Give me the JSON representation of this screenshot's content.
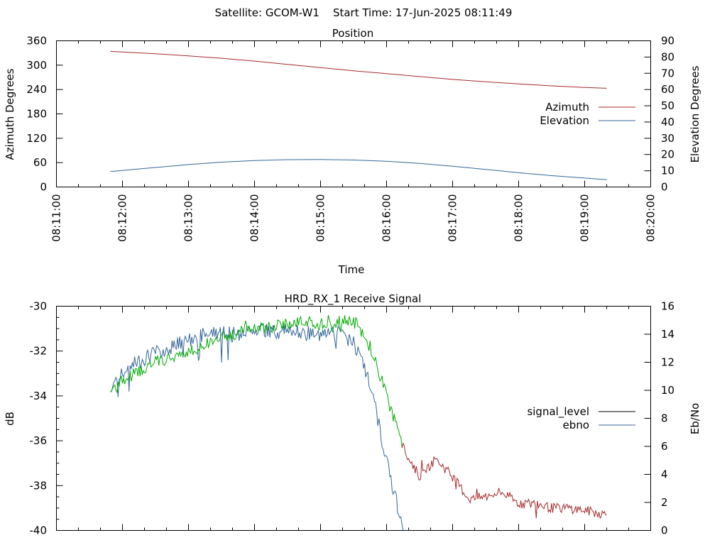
{
  "page_title": "Satellite: GCOM-W1    Start Time: 17-Jun-2025 08:11:49",
  "chart_data": [
    {
      "type": "line",
      "title": "Position",
      "xlabel": "Time",
      "ylabel": "Azimuth Degrees",
      "y2label": "Elevation Degrees",
      "x_tick_labels": [
        "08:11:00",
        "08:12:00",
        "08:13:00",
        "08:14:00",
        "08:15:00",
        "08:16:00",
        "08:17:00",
        "08:18:00",
        "08:19:00",
        "08:20:00"
      ],
      "ylim": [
        0,
        360
      ],
      "y_ticks": [
        0,
        60,
        120,
        180,
        240,
        300,
        360
      ],
      "y2lim": [
        0,
        90
      ],
      "y2_ticks": [
        0,
        10,
        20,
        30,
        40,
        50,
        60,
        70,
        80,
        90
      ],
      "legend_position": "right",
      "colors": {
        "Azimuth": "#a52a2a",
        "Elevation": "#336699"
      },
      "series": [
        {
          "name": "Azimuth",
          "axis": "left",
          "x": [
            "08:11:49",
            "08:12:30",
            "08:13:00",
            "08:13:30",
            "08:14:00",
            "08:14:30",
            "08:15:00",
            "08:15:30",
            "08:16:00",
            "08:16:30",
            "08:17:00",
            "08:17:30",
            "08:18:00",
            "08:18:30",
            "08:19:00",
            "08:19:20"
          ],
          "values": [
            334,
            328,
            323,
            317,
            310,
            302,
            294,
            286,
            279,
            272,
            265,
            259,
            254,
            249,
            245,
            243
          ]
        },
        {
          "name": "Elevation",
          "axis": "right",
          "x": [
            "08:11:49",
            "08:12:30",
            "08:13:00",
            "08:13:30",
            "08:14:00",
            "08:14:30",
            "08:15:00",
            "08:15:30",
            "08:16:00",
            "08:16:30",
            "08:17:00",
            "08:17:30",
            "08:18:00",
            "08:18:30",
            "08:19:00",
            "08:19:20"
          ],
          "values": [
            9.5,
            12,
            13.8,
            15.3,
            16.3,
            16.8,
            16.9,
            16.6,
            15.8,
            14.5,
            12.8,
            10.8,
            8.8,
            7,
            5.5,
            4.5
          ]
        }
      ]
    },
    {
      "type": "line",
      "title": "HRD_RX_1 Receive Signal",
      "ylabel": "dB",
      "y2label": "Eb/No",
      "ylim": [
        -40,
        -30
      ],
      "y_tick_labels": [
        "-40",
        "-38",
        "-36",
        "-34",
        "-32",
        "-30"
      ],
      "y2lim": [
        0,
        16
      ],
      "y2_ticks": [
        0,
        2,
        4,
        6,
        8,
        10,
        12,
        14,
        16
      ],
      "legend_position": "right",
      "colors": {
        "signal_level": "#000000",
        "ebno": "#336699",
        "low_signal_trace": "#a52a2a",
        "locked_trace": "#00aa00"
      },
      "series": [
        {
          "name": "signal_level",
          "axis": "left",
          "x": [
            "08:11:49",
            "08:12:00",
            "08:12:15",
            "08:12:30",
            "08:12:45",
            "08:13:00",
            "08:13:15",
            "08:13:30",
            "08:13:45",
            "08:14:00",
            "08:14:15",
            "08:14:30",
            "08:14:45",
            "08:15:00",
            "08:15:15",
            "08:15:30",
            "08:15:45",
            "08:16:00",
            "08:16:15",
            "08:16:30",
            "08:16:45",
            "08:17:00",
            "08:17:15",
            "08:17:30",
            "08:17:45",
            "08:18:00",
            "08:18:15",
            "08:18:30",
            "08:18:45",
            "08:19:00",
            "08:19:20"
          ],
          "values": [
            -33.8,
            -33.3,
            -32.9,
            -32.5,
            -32.3,
            -32.0,
            -31.7,
            -31.4,
            -31.2,
            -30.9,
            -30.9,
            -30.8,
            -30.7,
            -30.8,
            -30.7,
            -30.6,
            -31.8,
            -34.0,
            -36.3,
            -37.6,
            -36.8,
            -37.6,
            -38.6,
            -38.5,
            -38.3,
            -38.8,
            -38.8,
            -39.0,
            -39.0,
            -39.1,
            -39.3
          ]
        },
        {
          "name": "ebno",
          "axis": "right",
          "x": [
            "08:11:49",
            "08:12:00",
            "08:12:15",
            "08:12:30",
            "08:12:45",
            "08:13:00",
            "08:13:15",
            "08:13:30",
            "08:13:45",
            "08:14:00",
            "08:14:15",
            "08:14:30",
            "08:14:45",
            "08:15:00",
            "08:15:15",
            "08:15:30",
            "08:15:45",
            "08:16:00",
            "08:16:15"
          ],
          "values": [
            10.3,
            11.2,
            12.1,
            12.7,
            13.1,
            13.6,
            14.0,
            14.2,
            13.9,
            14.5,
            14.2,
            14.3,
            14.1,
            13.9,
            14.1,
            13.5,
            10.5,
            5.0,
            0
          ]
        }
      ]
    }
  ]
}
